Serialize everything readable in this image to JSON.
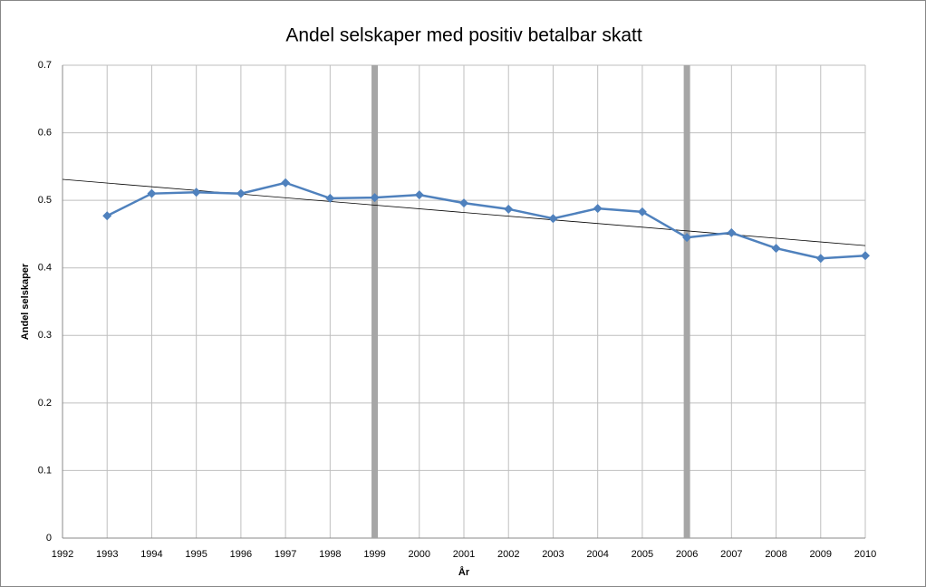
{
  "chart_data": {
    "type": "line",
    "title": "Andel selskaper med positiv betalbar skatt",
    "x_label": "År",
    "y_label": "Andel selskaper",
    "x": [
      1993,
      1994,
      1995,
      1996,
      1997,
      1998,
      1999,
      2000,
      2001,
      2002,
      2003,
      2004,
      2005,
      2006,
      2007,
      2008,
      2009,
      2010
    ],
    "series": [
      {
        "color": "#4f81bd",
        "values": [
          0.477,
          0.51,
          0.512,
          0.51,
          0.526,
          0.503,
          0.504,
          0.508,
          0.496,
          0.487,
          0.473,
          0.488,
          0.483,
          0.445,
          0.452,
          0.429,
          0.414,
          0.418
        ]
      }
    ],
    "trend": {
      "x": [
        1992,
        2010
      ],
      "values": [
        0.531,
        0.433
      ],
      "color": "#000000"
    },
    "vertical_lines": {
      "x": [
        1999,
        2006
      ],
      "color": "#a6a6a6"
    },
    "xlim": [
      1992,
      2010
    ],
    "xticks": [
      1992,
      1993,
      1994,
      1995,
      1996,
      1997,
      1998,
      1999,
      2000,
      2001,
      2002,
      2003,
      2004,
      2005,
      2006,
      2007,
      2008,
      2009,
      2010
    ],
    "ylim": [
      0,
      0.7
    ],
    "yticks": [
      0,
      0.1,
      0.2,
      0.3,
      0.4,
      0.5,
      0.6,
      0.7
    ],
    "grid": true
  }
}
